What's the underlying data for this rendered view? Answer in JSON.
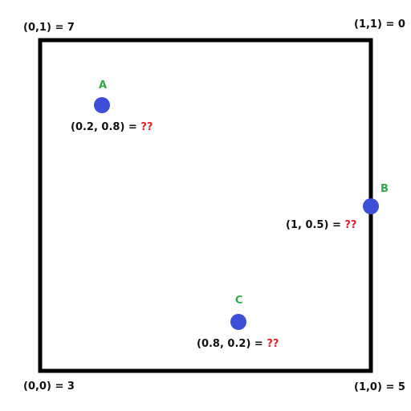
{
  "corners": {
    "top_left": "(0,1) = 7",
    "top_right": "(1,1) = 0",
    "bottom_left": "(0,0) = 3",
    "bottom_right": "(1,0) = 5"
  },
  "points": {
    "a": {
      "letter": "A",
      "coords": "(0.2, 0.8) = ",
      "value": "??"
    },
    "b": {
      "letter": "B",
      "coords": "(1, 0.5) = ",
      "value": "??"
    },
    "c": {
      "letter": "C",
      "coords": "(0.8, 0.2) = ",
      "value": "??"
    }
  },
  "colors": {
    "point_fill": "#3d4fd6",
    "point_letter": "#2eaa4a",
    "unknown_value": "#e0202a",
    "square_stroke": "#000000"
  }
}
